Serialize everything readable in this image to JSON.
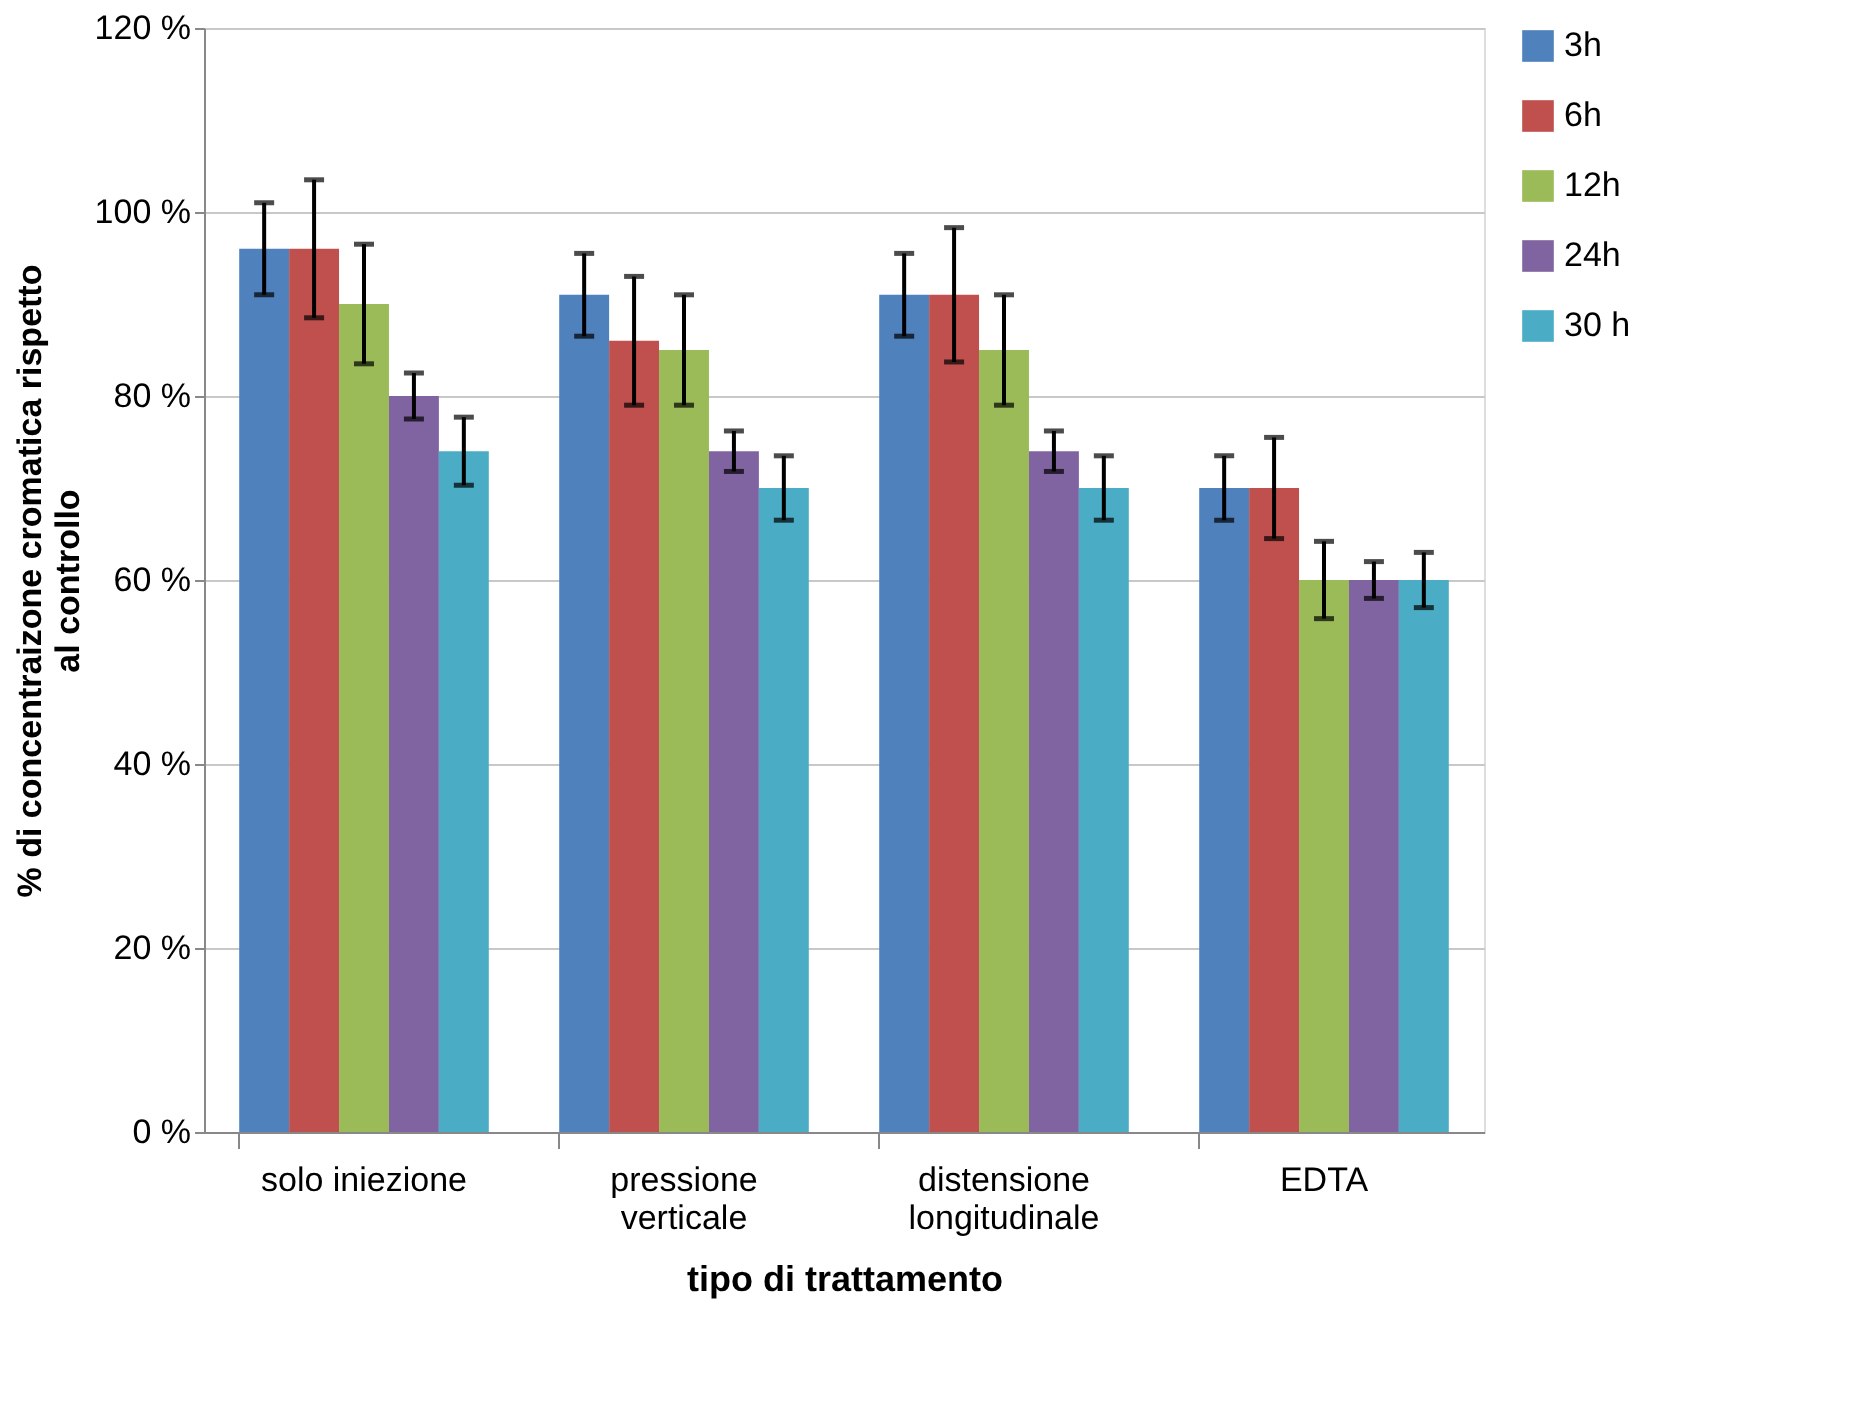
{
  "chart_data": {
    "type": "bar",
    "xlabel": "tipo di trattamento",
    "ylabel": "% di concentraizone cromatica rispetto al controllo",
    "categories": [
      "solo iniezione",
      "pressione verticale",
      "distensione longitudinale",
      "EDTA"
    ],
    "series": [
      {
        "name": "3h",
        "color": "#4f81bd",
        "values": [
          96,
          91,
          91,
          70
        ],
        "errors": [
          5,
          4.5,
          4.5,
          3.5
        ]
      },
      {
        "name": "6h",
        "color": "#c0504d",
        "values": [
          96,
          86,
          91,
          70
        ],
        "errors": [
          7.5,
          7,
          7.3,
          5.5
        ]
      },
      {
        "name": "12h",
        "color": "#9bbb59",
        "values": [
          90,
          85,
          85,
          60
        ],
        "errors": [
          6.5,
          6,
          6,
          4.2
        ]
      },
      {
        "name": "24h",
        "color": "#8064a2",
        "values": [
          80,
          74,
          74,
          60
        ],
        "errors": [
          2.5,
          2.2,
          2.2,
          2
        ]
      },
      {
        "name": "30 h",
        "color": "#4bacc6",
        "values": [
          74,
          70,
          70,
          60
        ],
        "errors": [
          3.7,
          3.5,
          3.5,
          3
        ]
      }
    ],
    "ylim": [
      0,
      120
    ],
    "yticks": [
      {
        "value": 0,
        "label": "0 %"
      },
      {
        "value": 20,
        "label": "20 %"
      },
      {
        "value": 40,
        "label": "40 %"
      },
      {
        "value": 60,
        "label": "60 %"
      },
      {
        "value": 80,
        "label": "80 %"
      },
      {
        "value": 100,
        "label": "100 %"
      },
      {
        "value": 120,
        "label": "120 %"
      }
    ],
    "grid": "y",
    "legend": "right"
  }
}
